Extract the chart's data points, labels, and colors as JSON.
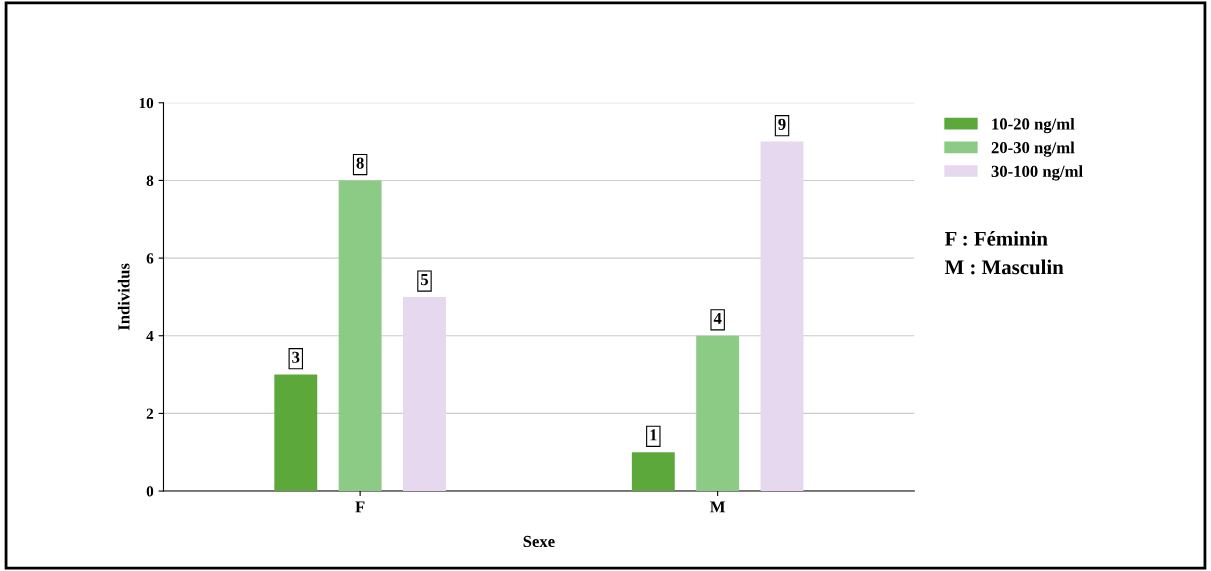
{
  "chart_data": {
    "type": "bar",
    "xlabel": "Sexe",
    "ylabel": "Individus",
    "categories": [
      "F",
      "M"
    ],
    "series": [
      {
        "name": "10-20 ng/ml",
        "color": "#5da83a",
        "values": [
          3,
          1
        ]
      },
      {
        "name": "20-30 ng/ml",
        "color": "#8ccb86",
        "values": [
          8,
          4
        ]
      },
      {
        "name": "30-100 ng/ml",
        "color": "#e6d8ee",
        "values": [
          5,
          9
        ]
      }
    ],
    "ylim": [
      0,
      10
    ],
    "yticks": [
      0,
      2,
      4,
      6,
      8,
      10
    ],
    "grid": "y",
    "legend": "top right",
    "data_labels": true,
    "annotations": [
      "F : Féminin",
      "M : Masculin"
    ]
  }
}
